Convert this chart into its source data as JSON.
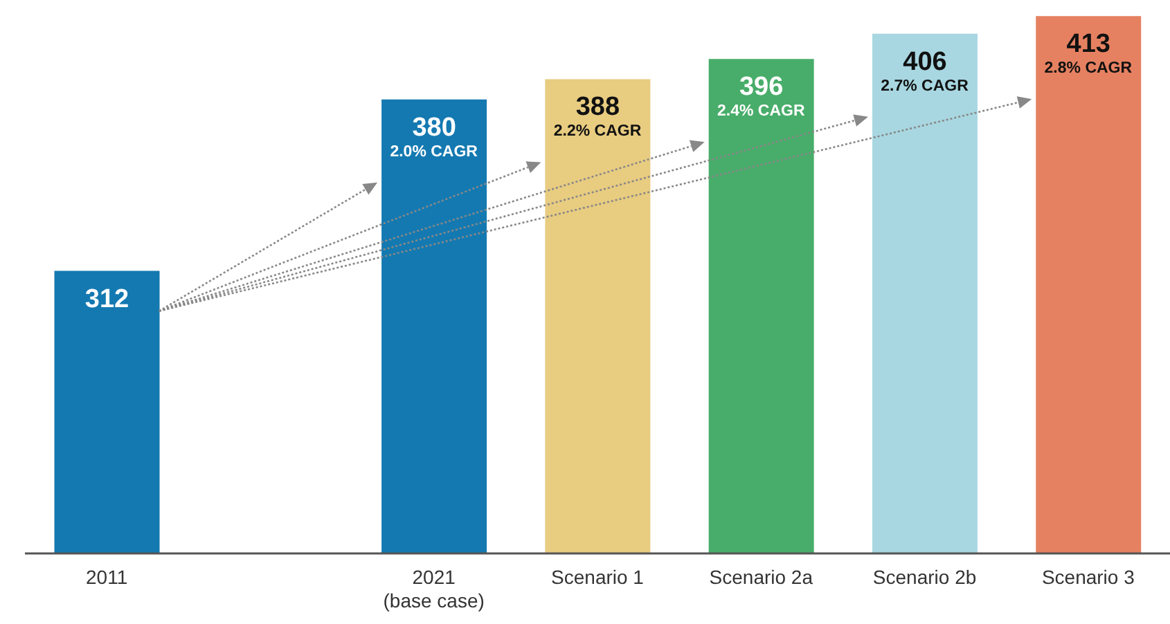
{
  "chart_data": {
    "type": "bar",
    "categories": [
      "2011",
      null,
      "2021\n(base case)",
      "Scenario 1",
      "Scenario 2a",
      "Scenario 2b",
      "Scenario 3"
    ],
    "values": [
      312,
      null,
      380,
      388,
      396,
      406,
      413
    ],
    "colors": [
      "#1479b1",
      null,
      "#1479b1",
      "#e8cc80",
      "#48ad6a",
      "#a8d7e1",
      "#e58161"
    ],
    "data_labels": true,
    "ylim": [
      200,
      415
    ],
    "tick_labels": "x",
    "grid": false,
    "legend": false,
    "annotations": [
      {
        "text": "2.0% CAGR",
        "x": "2021\n(base case)",
        "y": 380
      },
      {
        "text": "2.2% CAGR",
        "x": "Scenario 1",
        "y": 388
      },
      {
        "text": "2.4% CAGR",
        "x": "Scenario 2a",
        "y": 396
      },
      {
        "text": "2.7% CAGR",
        "x": "Scenario 2b",
        "y": 406
      },
      {
        "text": "2.8% CAGR",
        "x": "Scenario 3",
        "y": 413
      }
    ]
  }
}
